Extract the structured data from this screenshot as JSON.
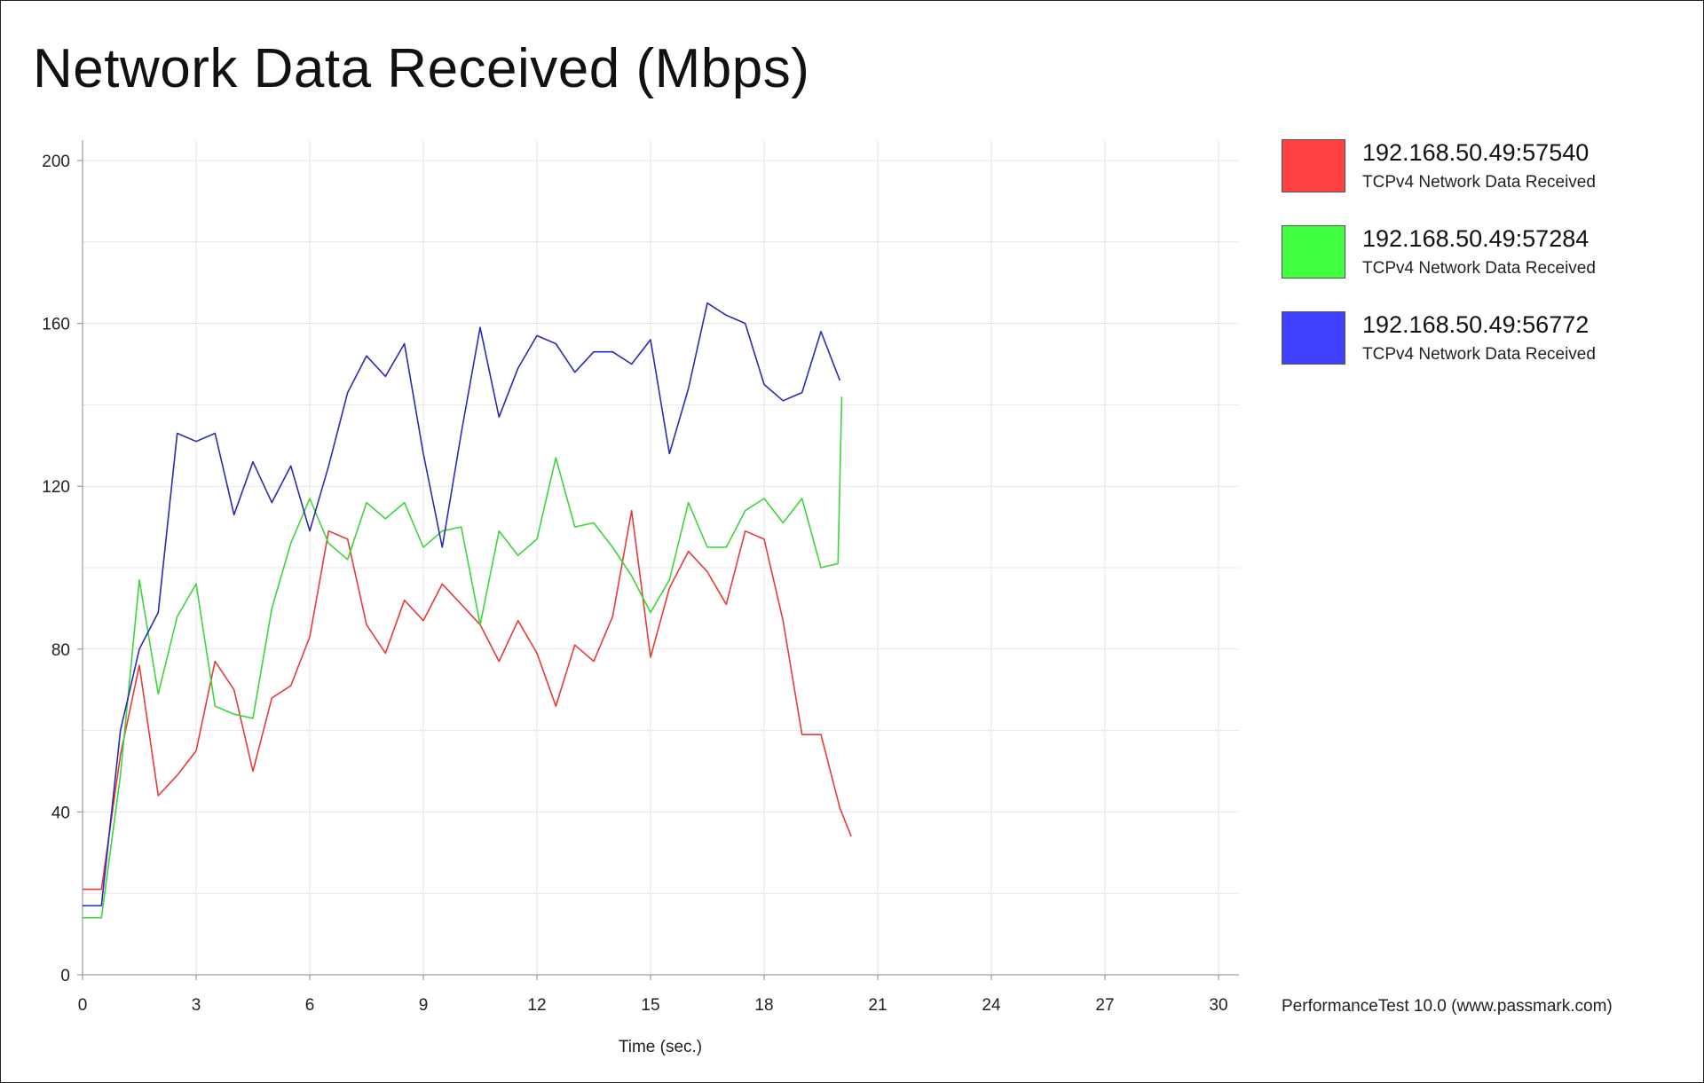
{
  "chart_data": {
    "type": "line",
    "title": "Network Data Received (Mbps)",
    "xlabel": "Time (sec.)",
    "ylabel": "",
    "xlim": [
      0,
      30
    ],
    "ylim": [
      0,
      200
    ],
    "x_ticks": [
      "0",
      "3",
      "6",
      "9",
      "12",
      "15",
      "18",
      "21",
      "24",
      "27",
      "30"
    ],
    "y_ticks": [
      "0",
      "40",
      "80",
      "120",
      "160",
      "200"
    ],
    "grid": true,
    "legend_position": "right",
    "series": [
      {
        "name": "192.168.50.49:57540",
        "description": "TCPv4 Network Data Received",
        "color": "#e83a3a",
        "swatch": "#ff4040",
        "x": [
          0,
          0.5,
          1.0,
          1.5,
          2.0,
          2.5,
          3.0,
          3.5,
          4.0,
          4.5,
          5.0,
          5.5,
          6.0,
          6.5,
          7.0,
          7.5,
          8.0,
          8.5,
          9.0,
          9.5,
          10.0,
          10.5,
          11.0,
          11.5,
          12.0,
          12.5,
          13.0,
          13.5,
          14.0,
          14.5,
          15.0,
          15.5,
          16.0,
          16.5,
          17.0,
          17.5,
          18.0,
          18.5,
          19.0,
          19.5,
          20.0,
          20.3
        ],
        "y": [
          21,
          21,
          54,
          76,
          44,
          49,
          55,
          77,
          70,
          50,
          68,
          71,
          83,
          109,
          107,
          86,
          79,
          92,
          87,
          96,
          91,
          86,
          77,
          87,
          79,
          66,
          81,
          77,
          88,
          114,
          78,
          95,
          104,
          99,
          91,
          109,
          107,
          87,
          59,
          59,
          41,
          34
        ]
      },
      {
        "name": "192.168.50.49:57284",
        "description": "TCPv4 Network Data Received",
        "color": "#3ad63a",
        "swatch": "#40ff40",
        "x": [
          0,
          0.5,
          1.0,
          1.5,
          2.0,
          2.5,
          3.0,
          3.5,
          4.0,
          4.5,
          5.0,
          5.5,
          6.0,
          6.5,
          7.0,
          7.5,
          8.0,
          8.5,
          9.0,
          9.5,
          10.0,
          10.5,
          11.0,
          11.5,
          12.0,
          12.5,
          13.0,
          13.5,
          14.0,
          14.5,
          15.0,
          15.5,
          16.0,
          16.5,
          17.0,
          17.5,
          18.0,
          18.5,
          19.0,
          19.5,
          19.95,
          20.05
        ],
        "y": [
          14,
          14,
          49,
          97,
          69,
          88,
          96,
          66,
          64,
          63,
          90,
          106,
          117,
          106,
          102,
          116,
          112,
          116,
          105,
          109,
          110,
          86,
          109,
          103,
          107,
          127,
          110,
          111,
          105,
          98,
          89,
          97,
          116,
          105,
          105,
          114,
          117,
          111,
          117,
          100,
          101,
          142
        ]
      },
      {
        "name": "192.168.50.49:56772",
        "description": "TCPv4 Network Data Received",
        "color": "#2a2ab8",
        "swatch": "#4040ff",
        "x": [
          0,
          0.5,
          1.0,
          1.5,
          2.0,
          2.5,
          3.0,
          3.5,
          4.0,
          4.5,
          5.0,
          5.5,
          6.0,
          6.5,
          7.0,
          7.5,
          8.0,
          8.5,
          9.0,
          9.5,
          10.0,
          10.5,
          11.0,
          11.5,
          12.0,
          12.5,
          13.0,
          13.5,
          14.0,
          14.5,
          15.0,
          15.5,
          16.0,
          16.5,
          17.0,
          17.5,
          18.0,
          18.5,
          19.0,
          19.5,
          20.0
        ],
        "y": [
          17,
          17,
          60,
          80,
          89,
          133,
          131,
          133,
          113,
          126,
          116,
          125,
          109,
          125,
          143,
          152,
          147,
          155,
          128,
          105,
          133,
          159,
          137,
          149,
          157,
          155,
          148,
          153,
          153,
          150,
          156,
          128,
          144,
          165,
          162,
          160,
          145,
          141,
          143,
          158,
          146
        ]
      }
    ]
  },
  "footer_text": "PerformanceTest 10.0 (www.passmark.com)"
}
